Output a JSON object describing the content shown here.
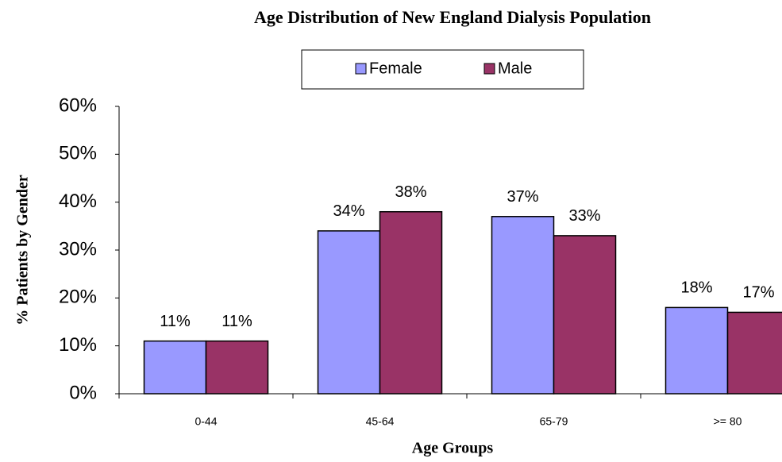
{
  "chart_data": {
    "type": "bar",
    "title": "Age Distribution of  New England Dialysis Population",
    "x_label": "Age Groups",
    "y_label": "% Patients by Gender",
    "categories": [
      "0-44",
      "45-64",
      "65-79",
      ">= 80"
    ],
    "series": [
      {
        "name": "Female",
        "color": "#9999ff",
        "values": [
          11,
          34,
          37,
          18
        ],
        "value_labels": [
          "11%",
          "34%",
          "37%",
          "18%"
        ]
      },
      {
        "name": "Male",
        "color": "#993366",
        "values": [
          11,
          38,
          33,
          17
        ],
        "value_labels": [
          "11%",
          "38%",
          "33%",
          "17%"
        ]
      }
    ],
    "ylim": [
      0,
      60
    ],
    "yticks": [
      {
        "value": 0,
        "label": "0%"
      },
      {
        "value": 10,
        "label": "10%"
      },
      {
        "value": 20,
        "label": "20%"
      },
      {
        "value": 30,
        "label": "30%"
      },
      {
        "value": 40,
        "label": "40%"
      },
      {
        "value": 50,
        "label": "50%"
      },
      {
        "value": 60,
        "label": "60%"
      }
    ],
    "legend": "top",
    "grid": false
  }
}
